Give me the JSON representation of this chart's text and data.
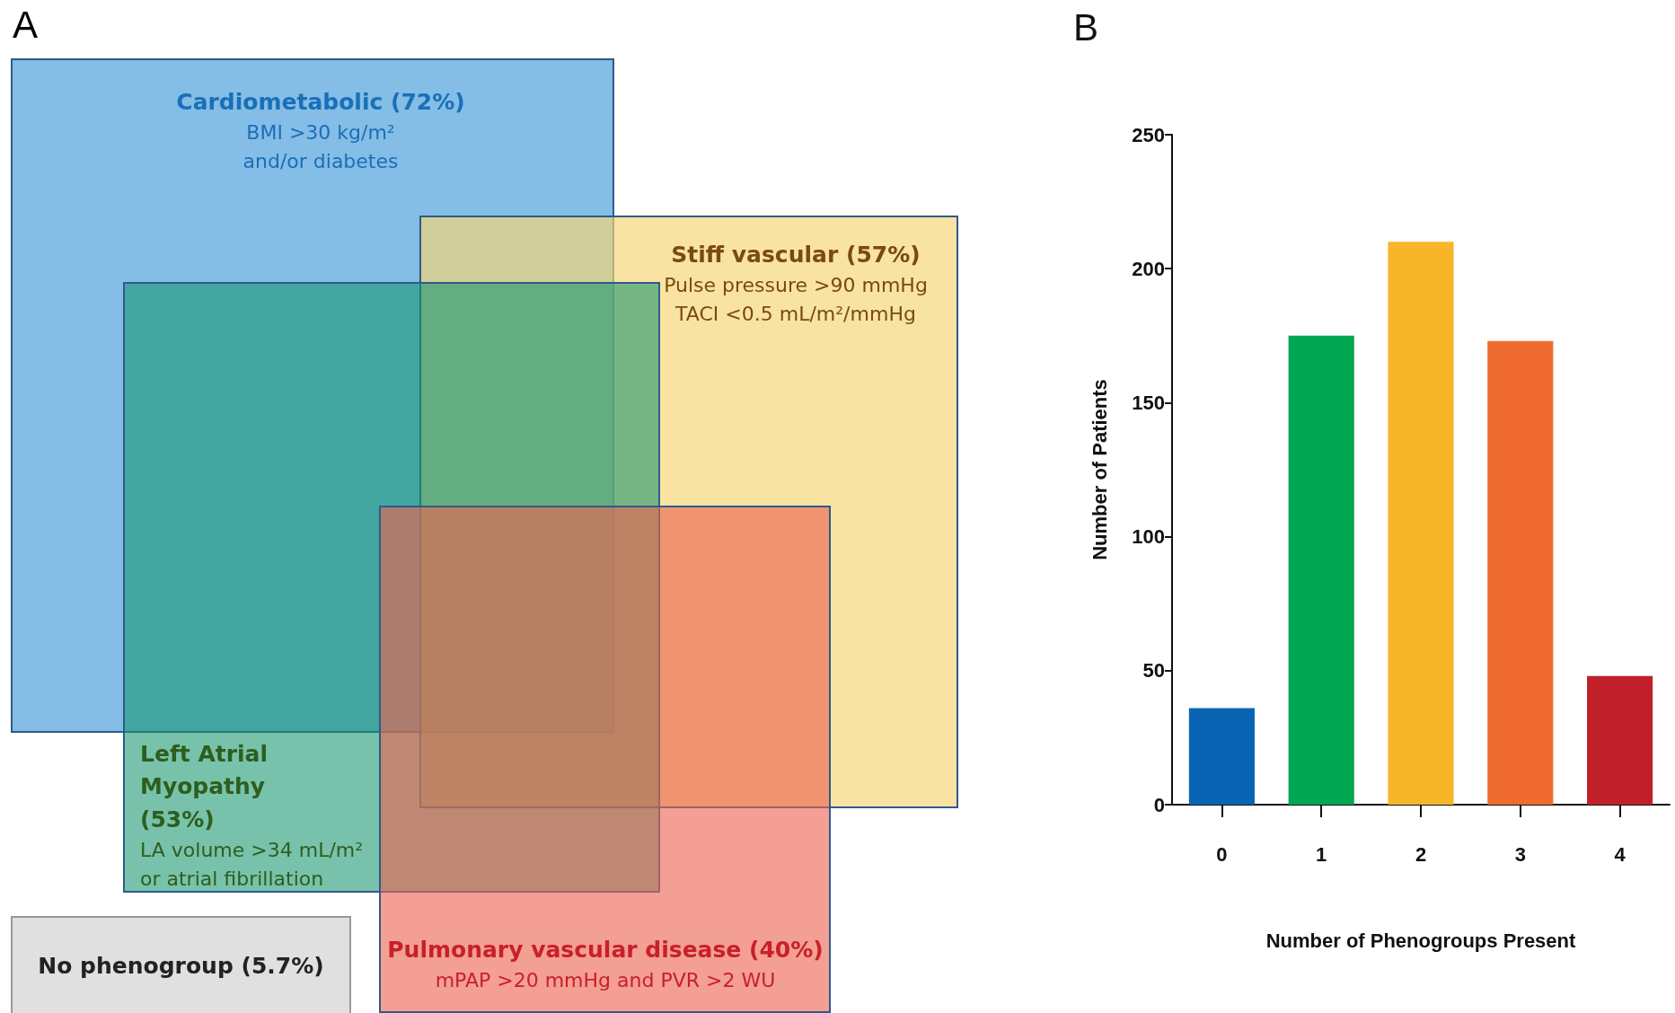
{
  "chart_data": [
    {
      "type": "other",
      "title": "A",
      "annotations": [
        "Cardiometabolic (72%)",
        "BMI >30 kg/m²",
        "and/or diabetes",
        "Stiff vascular (57%)",
        "Pulse pressure >90 mmHg",
        "TACI <0.5 mL/m²/mmHg",
        "Left Atrial Myopathy (53%)",
        "LA volume >34 mL/m²",
        "or atrial fibrillation",
        "Pulmonary vascular disease (40%)",
        "mPAP >20 mmHg and PVR >2 WU",
        "No phenogroup (5.7%)"
      ]
    },
    {
      "type": "bar",
      "title": "B",
      "xlabel": "Number of Phenogroups Present",
      "ylabel": "Number of Patients",
      "categories": [
        "0",
        "1",
        "2",
        "3",
        "4"
      ],
      "values": [
        36,
        175,
        210,
        173,
        48
      ],
      "colors": [
        "#0a64b4",
        "#00a651",
        "#f7b52a",
        "#ef6b2f",
        "#c1202a"
      ],
      "ylim": [
        0,
        250
      ],
      "yticks": [
        0,
        50,
        100,
        150,
        200,
        250
      ],
      "grid": false
    }
  ]
}
